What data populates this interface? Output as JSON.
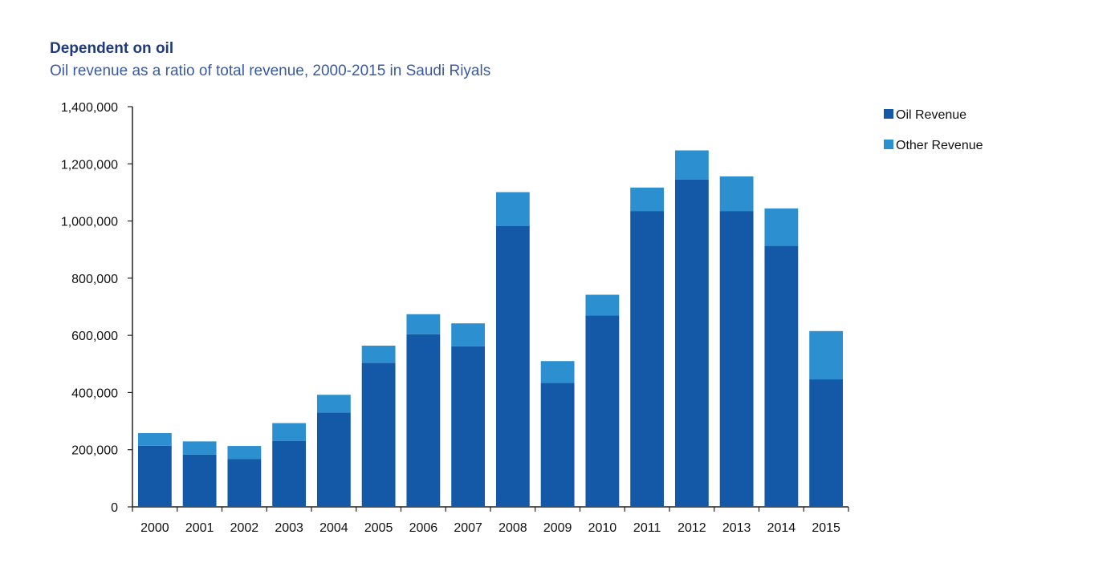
{
  "colors": {
    "oil": "#1459a8",
    "other": "#2b8fd0",
    "axis": "#222222"
  },
  "chart_data": {
    "type": "bar",
    "stacked": true,
    "title": "Dependent on oil",
    "subtitle": "Oil revenue as a ratio of total revenue, 2000-2015 in Saudi Riyals",
    "categories": [
      "2000",
      "2001",
      "2002",
      "2003",
      "2004",
      "2005",
      "2006",
      "2007",
      "2008",
      "2009",
      "2010",
      "2011",
      "2012",
      "2013",
      "2014",
      "2015"
    ],
    "series": [
      {
        "name": "Oil Revenue",
        "values": [
          214000,
          183000,
          167000,
          231000,
          330000,
          504000,
          604000,
          562000,
          983000,
          434000,
          670000,
          1035000,
          1145000,
          1035000,
          913000,
          446000
        ]
      },
      {
        "name": "Other Revenue",
        "values": [
          44000,
          46000,
          46000,
          62000,
          62000,
          60000,
          70000,
          80000,
          118000,
          76000,
          72000,
          82000,
          102000,
          121000,
          131000,
          169000
        ]
      }
    ],
    "ylim": [
      0,
      1400000
    ],
    "yticks": [
      0,
      200000,
      400000,
      600000,
      800000,
      1000000,
      1200000,
      1400000
    ],
    "ytick_labels": [
      "0",
      "200,000",
      "400,000",
      "600,000",
      "800,000",
      "1,000,000",
      "1,200,000",
      "1,400,000"
    ],
    "xlabel": "",
    "ylabel": "",
    "legend": [
      "Oil Revenue",
      "Other Revenue"
    ],
    "legend_position": "top-right",
    "grid": false
  }
}
